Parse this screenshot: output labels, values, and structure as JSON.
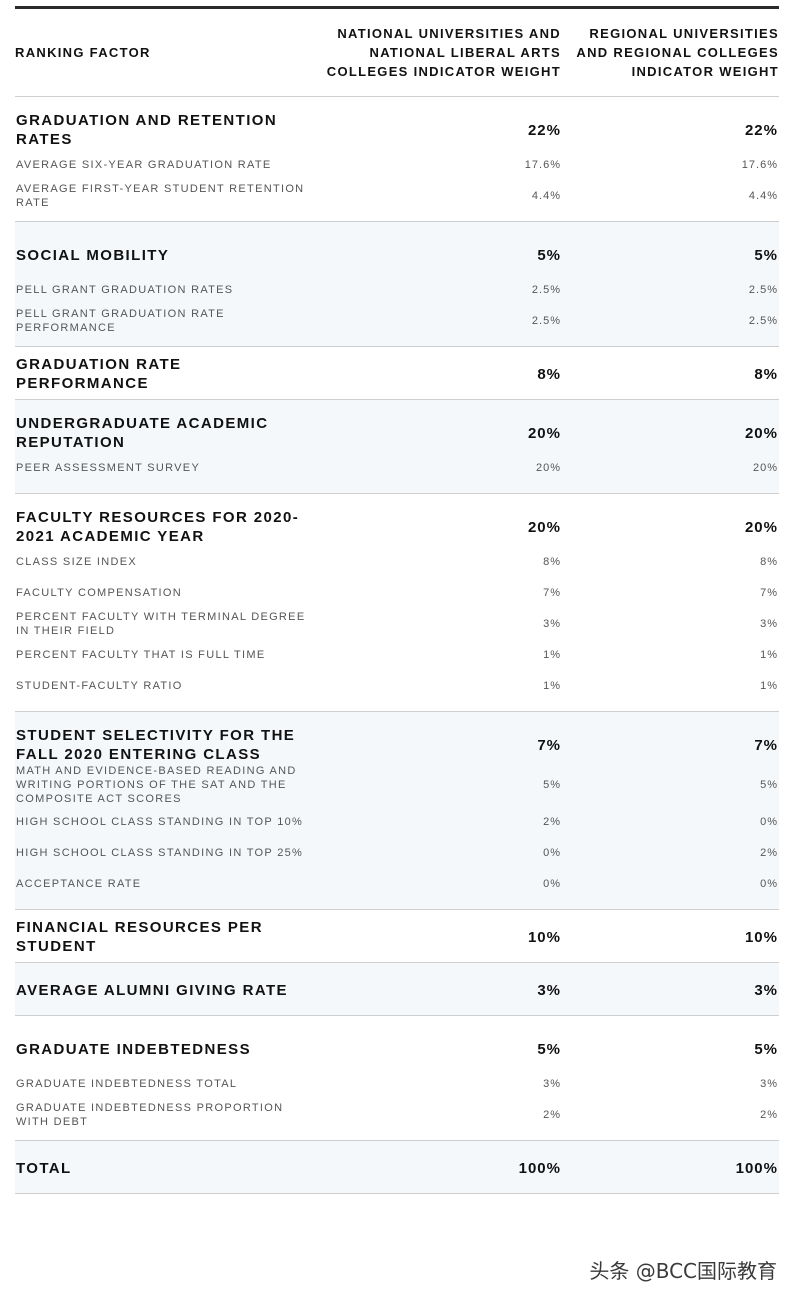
{
  "header": {
    "col1": "RANKING FACTOR",
    "col2": "NATIONAL UNIVERSITIES AND NATIONAL LIBERAL ARTS COLLEGES INDICATOR WEIGHT",
    "col3": "REGIONAL UNIVERSITIES AND REGIONAL COLLEGES INDICATOR WEIGHT"
  },
  "groups": [
    {
      "name": "GRADUATION AND RETENTION RATES",
      "national": "22%",
      "regional": "22%",
      "subs": [
        {
          "name": "AVERAGE SIX-YEAR GRADUATION RATE",
          "national": "17.6%",
          "regional": "17.6%"
        },
        {
          "name": "AVERAGE FIRST-YEAR STUDENT RETENTION RATE",
          "national": "4.4%",
          "regional": "4.4%"
        }
      ]
    },
    {
      "name": "SOCIAL MOBILITY",
      "national": "5%",
      "regional": "5%",
      "subs": [
        {
          "name": "PELL GRANT GRADUATION RATES",
          "national": "2.5%",
          "regional": "2.5%"
        },
        {
          "name": "PELL GRANT GRADUATION RATE PERFORMANCE",
          "national": "2.5%",
          "regional": "2.5%"
        }
      ]
    },
    {
      "name": "GRADUATION RATE PERFORMANCE",
      "national": "8%",
      "regional": "8%",
      "subs": []
    },
    {
      "name": "UNDERGRADUATE ACADEMIC REPUTATION",
      "national": "20%",
      "regional": "20%",
      "subs": [
        {
          "name": "PEER ASSESSMENT SURVEY",
          "national": "20%",
          "regional": "20%"
        }
      ]
    },
    {
      "name": "FACULTY RESOURCES FOR 2020-2021 ACADEMIC YEAR",
      "national": "20%",
      "regional": "20%",
      "subs": [
        {
          "name": "CLASS SIZE INDEX",
          "national": "8%",
          "regional": "8%"
        },
        {
          "name": "FACULTY COMPENSATION",
          "national": "7%",
          "regional": "7%"
        },
        {
          "name": "PERCENT FACULTY WITH TERMINAL DEGREE IN THEIR FIELD",
          "national": "3%",
          "regional": "3%"
        },
        {
          "name": "PERCENT FACULTY THAT IS FULL TIME",
          "national": "1%",
          "regional": "1%"
        },
        {
          "name": "STUDENT-FACULTY RATIO",
          "national": "1%",
          "regional": "1%"
        }
      ]
    },
    {
      "name": "STUDENT SELECTIVITY FOR THE FALL 2020 ENTERING CLASS",
      "national": "7%",
      "regional": "7%",
      "subs": [
        {
          "name": "MATH AND EVIDENCE-BASED READING AND WRITING PORTIONS OF THE SAT AND THE COMPOSITE ACT SCORES",
          "national": "5%",
          "regional": "5%"
        },
        {
          "name": "HIGH SCHOOL CLASS STANDING IN TOP 10%",
          "national": "2%",
          "regional": "0%"
        },
        {
          "name": "HIGH SCHOOL CLASS STANDING IN TOP 25%",
          "national": "0%",
          "regional": "2%"
        },
        {
          "name": "ACCEPTANCE RATE",
          "national": "0%",
          "regional": "0%"
        }
      ]
    },
    {
      "name": "FINANCIAL RESOURCES PER STUDENT",
      "national": "10%",
      "regional": "10%",
      "subs": []
    },
    {
      "name": "AVERAGE ALUMNI GIVING RATE",
      "national": "3%",
      "regional": "3%",
      "subs": []
    },
    {
      "name": "GRADUATE INDEBTEDNESS",
      "national": "5%",
      "regional": "5%",
      "subs": [
        {
          "name": "GRADUATE INDEBTEDNESS TOTAL",
          "national": "3%",
          "regional": "3%"
        },
        {
          "name": "GRADUATE INDEBTEDNESS PROPORTION WITH DEBT",
          "national": "2%",
          "regional": "2%"
        }
      ]
    },
    {
      "name": "TOTAL",
      "national": "100%",
      "regional": "100%",
      "subs": []
    }
  ],
  "watermark": "头条 @BCC国际教育"
}
